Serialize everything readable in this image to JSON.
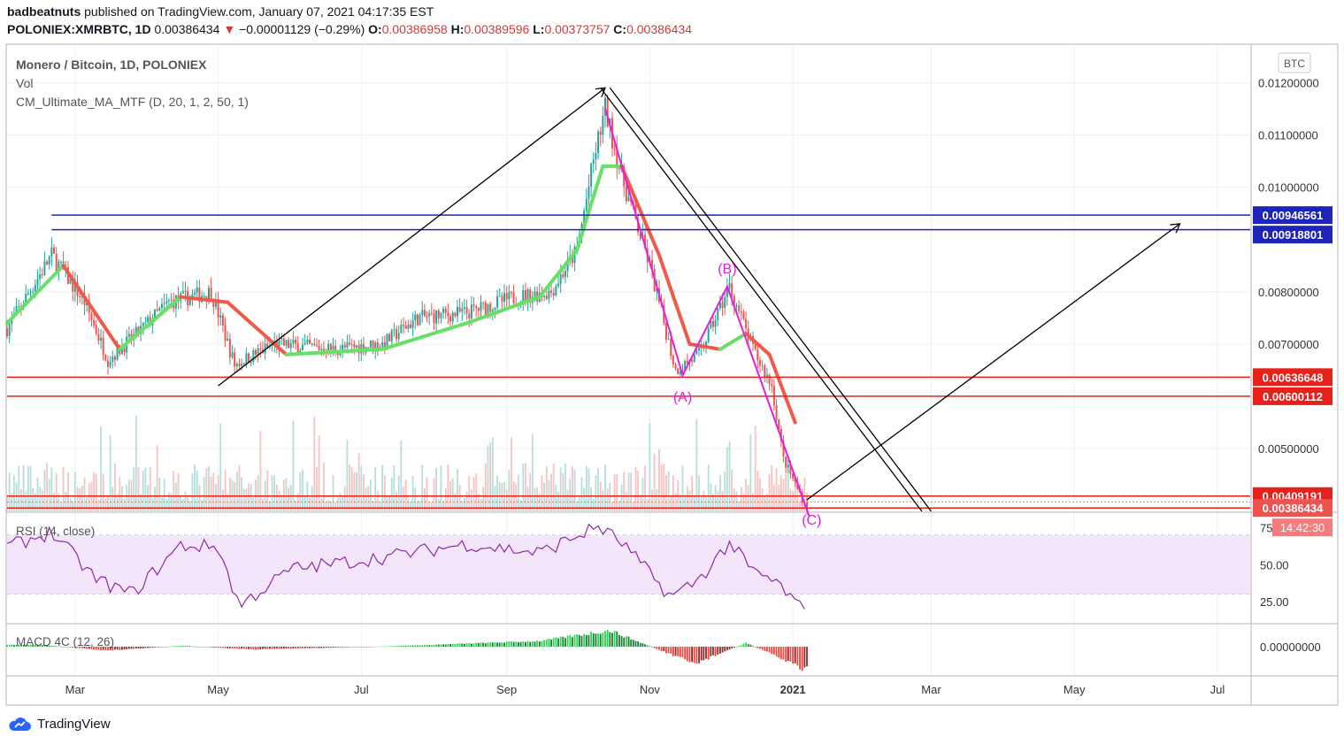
{
  "header": {
    "author": "badbeatnuts",
    "published_text": "published on TradingView.com, January 07, 2021 04:17:35 EST",
    "symbol": "POLONIEX:XMRBTC, 1D",
    "price": "0.00386434",
    "change_arrow": "▼",
    "change": "−0.00001129 (−0.29%)",
    "open_label": "O:",
    "open": "0.00386958",
    "high_label": "H:",
    "high": "0.00389596",
    "low_label": "L:",
    "low": "0.00373757",
    "close_label": "C:",
    "close": "0.00386434"
  },
  "legend": {
    "title": "Monero / Bitcoin, 1D, POLONIEX",
    "vol": "Vol",
    "ma": "CM_Ultimate_MA_MTF (D, 20, 1, 2, 50, 1)",
    "rsi": "RSI (14, close)",
    "macd": "MACD 4C (12, 26)"
  },
  "currency_badge": "BTC",
  "footer_brand": "TradingView",
  "colors": {
    "up": "#26a69a",
    "down": "#ef5350",
    "ma_up": "#66e066",
    "ma_down": "#f05a4a",
    "blue_line": "#1f24b8",
    "red_line": "#e8201a",
    "pattern": "#e020e0",
    "rsi": "#8e2aa6",
    "rsi_band": "#f3e6fb"
  },
  "chart_data": [
    {
      "type": "candlestick",
      "title": "Monero / Bitcoin, 1D, POLONIEX",
      "x_ticks": [
        "Mar",
        "May",
        "Jul",
        "Sep",
        "Nov",
        "2021",
        "Mar",
        "May",
        "Jul"
      ],
      "y_ticks": [
        "0.01200000",
        "0.01100000",
        "0.01000000",
        "0.00800000",
        "0.00700000",
        "0.00500000"
      ],
      "ylim": [
        0.0038,
        0.0127
      ],
      "price_labels": [
        {
          "value": 0.00946561,
          "text": "0.00946561",
          "color": "#1f24b8"
        },
        {
          "value": 0.00918801,
          "text": "0.00918801",
          "color": "#1f24b8"
        },
        {
          "value": 0.00636648,
          "text": "0.00636648",
          "color": "#e8201a"
        },
        {
          "value": 0.00600112,
          "text": "0.00600112",
          "color": "#e8201a"
        },
        {
          "value": 0.00409191,
          "text": "0.00409191",
          "color": "#e8201a"
        },
        {
          "value": 0.00386434,
          "text": "0.00386434",
          "color": "#ef5350"
        }
      ],
      "countdown": "14:42:30",
      "close_path": [
        [
          "2020-02-01",
          0.0073
        ],
        [
          "2020-02-20",
          0.0087
        ],
        [
          "2020-03-05",
          0.0078
        ],
        [
          "2020-03-15",
          0.0067
        ],
        [
          "2020-03-25",
          0.0071
        ],
        [
          "2020-04-10",
          0.0078
        ],
        [
          "2020-04-28",
          0.008
        ],
        [
          "2020-05-08",
          0.0066
        ],
        [
          "2020-05-25",
          0.007
        ],
        [
          "2020-06-20",
          0.0069
        ],
        [
          "2020-07-10",
          0.007
        ],
        [
          "2020-07-25",
          0.0075
        ],
        [
          "2020-08-15",
          0.0076
        ],
        [
          "2020-09-05",
          0.0079
        ],
        [
          "2020-09-20",
          0.008
        ],
        [
          "2020-10-01",
          0.0088
        ],
        [
          "2020-10-08",
          0.0105
        ],
        [
          "2020-10-13",
          0.0115
        ],
        [
          "2020-10-20",
          0.0102
        ],
        [
          "2020-11-01",
          0.0085
        ],
        [
          "2020-11-12",
          0.0065
        ],
        [
          "2020-11-22",
          0.0068
        ],
        [
          "2020-12-05",
          0.0081
        ],
        [
          "2020-12-15",
          0.0069
        ],
        [
          "2020-12-23",
          0.0062
        ],
        [
          "2020-12-28",
          0.0048
        ],
        [
          "2021-01-07",
          0.00386434
        ]
      ],
      "series": [
        {
          "name": "CM_Ultimate_MA_MTF",
          "points": [
            [
              "2020-02-01",
              0.0074
            ],
            [
              "2020-02-25",
              0.0085
            ],
            [
              "2020-03-20",
              0.0069
            ],
            [
              "2020-04-15",
              0.0079
            ],
            [
              "2020-05-05",
              0.0078
            ],
            [
              "2020-05-30",
              0.0068
            ],
            [
              "2020-07-10",
              0.0069
            ],
            [
              "2020-08-15",
              0.0074
            ],
            [
              "2020-09-15",
              0.0079
            ],
            [
              "2020-10-01",
              0.0088
            ],
            [
              "2020-10-12",
              0.0104
            ],
            [
              "2020-10-20",
              0.0104
            ],
            [
              "2020-11-05",
              0.0087
            ],
            [
              "2020-11-18",
              0.007
            ],
            [
              "2020-12-01",
              0.0069
            ],
            [
              "2020-12-12",
              0.0072
            ],
            [
              "2020-12-22",
              0.0068
            ],
            [
              "2021-01-02",
              0.0055
            ]
          ]
        }
      ],
      "drawings": {
        "horizontal_levels": [
          0.00946561,
          0.00918801,
          0.00636648,
          0.00600112,
          0.00409191,
          0.00386434
        ],
        "abc_labels": [
          "(A)",
          "(B)",
          "(C)"
        ]
      }
    },
    {
      "type": "line",
      "title": "RSI (14, close)",
      "y_ticks": [
        "75.00",
        "50.00",
        "25.00"
      ],
      "ylim": [
        10,
        85
      ],
      "band": [
        30,
        70
      ],
      "points": [
        [
          "2020-02-01",
          62
        ],
        [
          "2020-02-20",
          72
        ],
        [
          "2020-03-10",
          40
        ],
        [
          "2020-03-25",
          30
        ],
        [
          "2020-04-15",
          63
        ],
        [
          "2020-05-01",
          62
        ],
        [
          "2020-05-10",
          22
        ],
        [
          "2020-06-01",
          47
        ],
        [
          "2020-07-10",
          55
        ],
        [
          "2020-08-15",
          64
        ],
        [
          "2020-09-15",
          58
        ],
        [
          "2020-10-10",
          76
        ],
        [
          "2020-10-20",
          65
        ],
        [
          "2020-11-10",
          28
        ],
        [
          "2020-11-22",
          40
        ],
        [
          "2020-12-05",
          65
        ],
        [
          "2020-12-15",
          45
        ],
        [
          "2020-12-25",
          38
        ],
        [
          "2021-01-07",
          16
        ]
      ]
    },
    {
      "type": "bar",
      "title": "MACD 4C (12, 26)",
      "y_ticks": [
        "0.00000000"
      ],
      "points": [
        [
          "2020-02-15",
          0.0001
        ],
        [
          "2020-03-15",
          -0.0002
        ],
        [
          "2020-04-15",
          5e-05
        ],
        [
          "2020-05-15",
          -0.00015
        ],
        [
          "2020-07-15",
          3e-05
        ],
        [
          "2020-09-15",
          0.0003
        ],
        [
          "2020-10-15",
          0.00085
        ],
        [
          "2020-11-20",
          -0.0009
        ],
        [
          "2020-12-12",
          0.0002
        ],
        [
          "2021-01-05",
          -0.0011
        ]
      ]
    }
  ]
}
